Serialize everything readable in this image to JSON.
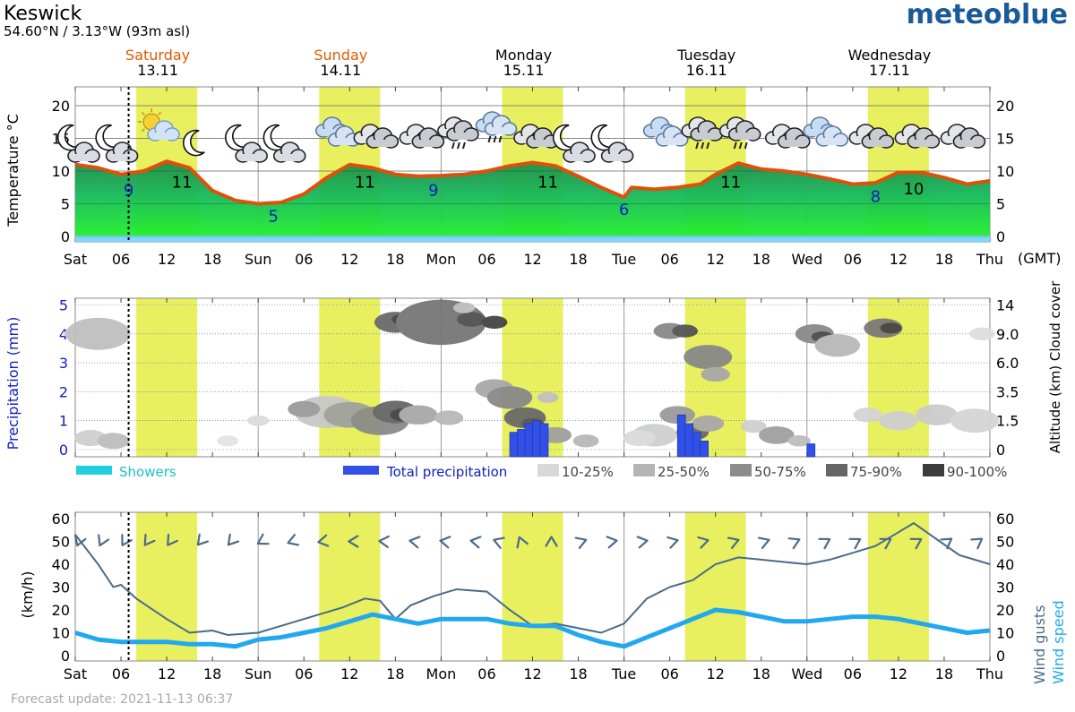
{
  "header": {
    "location": "Keswick",
    "coords": "54.60°N / 3.13°W (93m asl)",
    "brand": "meteoblue"
  },
  "days": [
    {
      "name": "Saturday",
      "date": "13.11",
      "weekend": true
    },
    {
      "name": "Sunday",
      "date": "14.11",
      "weekend": true
    },
    {
      "name": "Monday",
      "date": "15.11",
      "weekend": false
    },
    {
      "name": "Tuesday",
      "date": "16.11",
      "weekend": false
    },
    {
      "name": "Wednesday",
      "date": "17.11",
      "weekend": false
    }
  ],
  "x_ticks": [
    "Sat",
    "06",
    "12",
    "18",
    "Sun",
    "06",
    "12",
    "18",
    "Mon",
    "06",
    "12",
    "18",
    "Tue",
    "06",
    "12",
    "18",
    "Wed",
    "06",
    "12",
    "18",
    "Thu"
  ],
  "tz_label": "(GMT)",
  "colors": {
    "daylight": "#e8f060",
    "temp_line": "#e0500a",
    "temp_fill_top": "#1e8a4a",
    "temp_fill_bottom": "#20f02a",
    "water": "#80d8f8",
    "precip": "#3050e8",
    "showers": "#20d0e0",
    "gust": "#4a6b8a",
    "wind": "#20a8f0",
    "weekend_text": "#e05a00",
    "axis_blue": "#1020c0"
  },
  "chart_data": [
    {
      "type": "area",
      "ylabel": "Temperature °C",
      "ylim": [
        0,
        22
      ],
      "yticks": [
        0,
        5,
        10,
        15,
        20
      ],
      "x_hours": [
        0,
        6,
        12,
        18,
        24,
        30,
        36,
        42,
        48,
        54,
        60,
        66,
        72,
        78,
        84,
        90,
        96,
        102,
        108,
        114,
        120
      ],
      "temperature_hourly_points": [
        [
          0,
          11
        ],
        [
          3,
          10.5
        ],
        [
          6,
          9.5
        ],
        [
          9,
          10
        ],
        [
          12,
          11.5
        ],
        [
          15,
          10.5
        ],
        [
          18,
          7
        ],
        [
          21,
          5.5
        ],
        [
          24,
          5
        ],
        [
          27,
          5.2
        ],
        [
          30,
          6.5
        ],
        [
          33,
          9
        ],
        [
          36,
          11
        ],
        [
          39,
          10.5
        ],
        [
          42,
          9.5
        ],
        [
          45,
          9.2
        ],
        [
          48,
          9.3
        ],
        [
          51,
          9.5
        ],
        [
          54,
          10
        ],
        [
          57,
          10.8
        ],
        [
          60,
          11.3
        ],
        [
          63,
          10.8
        ],
        [
          66,
          9.2
        ],
        [
          69,
          7.5
        ],
        [
          72,
          6
        ],
        [
          73,
          7.5
        ],
        [
          76,
          7.2
        ],
        [
          79,
          7.5
        ],
        [
          82,
          8
        ],
        [
          84,
          9.5
        ],
        [
          87,
          11.2
        ],
        [
          90,
          10.3
        ],
        [
          93,
          10
        ],
        [
          96,
          9.5
        ],
        [
          99,
          8.8
        ],
        [
          102,
          8
        ],
        [
          105,
          8.2
        ],
        [
          108,
          9.8
        ],
        [
          111,
          9.8
        ],
        [
          114,
          9
        ],
        [
          117,
          8
        ],
        [
          120,
          8.5
        ]
      ],
      "labels": [
        {
          "hour": 7,
          "value": "9",
          "kind": "min"
        },
        {
          "hour": 14,
          "value": "11",
          "kind": "max"
        },
        {
          "hour": 26,
          "value": "5",
          "kind": "min"
        },
        {
          "hour": 38,
          "value": "11",
          "kind": "max"
        },
        {
          "hour": 47,
          "value": "9",
          "kind": "min"
        },
        {
          "hour": 62,
          "value": "11",
          "kind": "max"
        },
        {
          "hour": 72,
          "value": "6",
          "kind": "min"
        },
        {
          "hour": 86,
          "value": "11",
          "kind": "max"
        },
        {
          "hour": 105,
          "value": "8",
          "kind": "min"
        },
        {
          "hour": 110,
          "value": "10",
          "kind": "max"
        }
      ],
      "icons": [
        {
          "hour": 0,
          "type": "moon-cloud"
        },
        {
          "hour": 5,
          "type": "moon-cloud"
        },
        {
          "hour": 10,
          "type": "sun-cloud"
        },
        {
          "hour": 16,
          "type": "moon"
        },
        {
          "hour": 22,
          "type": "moon-cloud"
        },
        {
          "hour": 27,
          "type": "moon-cloud"
        },
        {
          "hour": 33,
          "type": "cloud"
        },
        {
          "hour": 38,
          "type": "cloud-dark"
        },
        {
          "hour": 44,
          "type": "cloud-dark"
        },
        {
          "hour": 49,
          "type": "cloud-rain"
        },
        {
          "hour": 54,
          "type": "cloud-rain-light"
        },
        {
          "hour": 59,
          "type": "cloud-dark"
        },
        {
          "hour": 65,
          "type": "moon-cloud"
        },
        {
          "hour": 70,
          "type": "moon-cloud"
        },
        {
          "hour": 76,
          "type": "cloud"
        },
        {
          "hour": 81,
          "type": "cloud-rain"
        },
        {
          "hour": 86,
          "type": "cloud-rain"
        },
        {
          "hour": 92,
          "type": "cloud-dark"
        },
        {
          "hour": 97,
          "type": "cloud"
        },
        {
          "hour": 103,
          "type": "cloud-dark"
        },
        {
          "hour": 109,
          "type": "cloud-dark"
        },
        {
          "hour": 115,
          "type": "cloud-dark"
        }
      ]
    },
    {
      "type": "bar",
      "ylabel": "Precipitation (mm)",
      "ylabel_right": "Altitude (km) Cloud cover",
      "ylim": [
        0,
        5
      ],
      "yticks": [
        0,
        1,
        2,
        3,
        4,
        5
      ],
      "right_ticks": [
        "0",
        "1.5",
        "3.5",
        "6.0",
        "9.0",
        "14"
      ],
      "precip_bars": [
        [
          57,
          0.6
        ],
        [
          58,
          0.7
        ],
        [
          59,
          0.9
        ],
        [
          60,
          1
        ],
        [
          61,
          0.9
        ],
        [
          79,
          1.2
        ],
        [
          80,
          0.9
        ],
        [
          81,
          0.6
        ],
        [
          82,
          0.3
        ],
        [
          96,
          0.2
        ]
      ],
      "legend": [
        "Showers",
        "Total precipitation",
        "10-25%",
        "25-50%",
        "50-75%",
        "75-90%",
        "90-100%"
      ]
    },
    {
      "type": "line",
      "ylabel": "(km/h)",
      "ylabel_right_gust": "Wind gusts",
      "ylabel_right_speed": "Wind speed",
      "ylim": [
        0,
        60
      ],
      "yticks": [
        0,
        10,
        20,
        30,
        40,
        50,
        60
      ],
      "wind_gusts": [
        [
          0,
          53
        ],
        [
          3,
          40
        ],
        [
          5,
          30
        ],
        [
          6,
          31
        ],
        [
          8,
          25
        ],
        [
          12,
          16
        ],
        [
          15,
          10
        ],
        [
          18,
          11
        ],
        [
          20,
          9
        ],
        [
          24,
          10
        ],
        [
          28,
          14
        ],
        [
          32,
          18
        ],
        [
          35,
          21
        ],
        [
          38,
          25
        ],
        [
          40,
          24
        ],
        [
          42,
          16
        ],
        [
          44,
          22
        ],
        [
          47,
          26
        ],
        [
          50,
          29
        ],
        [
          54,
          28
        ],
        [
          57,
          20
        ],
        [
          60,
          13
        ],
        [
          63,
          14
        ],
        [
          66,
          12
        ],
        [
          69,
          10
        ],
        [
          72,
          14
        ],
        [
          75,
          25
        ],
        [
          78,
          30
        ],
        [
          81,
          33
        ],
        [
          84,
          40
        ],
        [
          87,
          43
        ],
        [
          90,
          42
        ],
        [
          93,
          41
        ],
        [
          96,
          40
        ],
        [
          99,
          42
        ],
        [
          102,
          45
        ],
        [
          105,
          48
        ],
        [
          108,
          54
        ],
        [
          110,
          58
        ],
        [
          113,
          51
        ],
        [
          116,
          44
        ],
        [
          120,
          40
        ]
      ],
      "wind_speed": [
        [
          0,
          10
        ],
        [
          3,
          7
        ],
        [
          6,
          6
        ],
        [
          9,
          6
        ],
        [
          12,
          6
        ],
        [
          15,
          5
        ],
        [
          18,
          5
        ],
        [
          21,
          4
        ],
        [
          24,
          7
        ],
        [
          27,
          8
        ],
        [
          30,
          10
        ],
        [
          33,
          12
        ],
        [
          36,
          15
        ],
        [
          39,
          18
        ],
        [
          42,
          16
        ],
        [
          45,
          14
        ],
        [
          48,
          16
        ],
        [
          51,
          16
        ],
        [
          54,
          16
        ],
        [
          57,
          14
        ],
        [
          60,
          13
        ],
        [
          63,
          13
        ],
        [
          66,
          9
        ],
        [
          69,
          6
        ],
        [
          72,
          4
        ],
        [
          75,
          8
        ],
        [
          78,
          12
        ],
        [
          81,
          16
        ],
        [
          84,
          20
        ],
        [
          87,
          19
        ],
        [
          90,
          17
        ],
        [
          93,
          15
        ],
        [
          96,
          15
        ],
        [
          99,
          16
        ],
        [
          102,
          17
        ],
        [
          105,
          17
        ],
        [
          108,
          16
        ],
        [
          111,
          14
        ],
        [
          114,
          12
        ],
        [
          117,
          10
        ],
        [
          120,
          11
        ]
      ],
      "wind_dirs": [
        {
          "hour": 0,
          "deg": 20
        },
        {
          "hour": 3,
          "deg": 25
        },
        {
          "hour": 6,
          "deg": 30
        },
        {
          "hour": 9,
          "deg": 35
        },
        {
          "hour": 12,
          "deg": 35
        },
        {
          "hour": 16,
          "deg": 40
        },
        {
          "hour": 20,
          "deg": 40
        },
        {
          "hour": 24,
          "deg": 60
        },
        {
          "hour": 28,
          "deg": 70
        },
        {
          "hour": 32,
          "deg": 80
        },
        {
          "hour": 36,
          "deg": 90
        },
        {
          "hour": 40,
          "deg": 95
        },
        {
          "hour": 44,
          "deg": 100
        },
        {
          "hour": 48,
          "deg": 100
        },
        {
          "hour": 52,
          "deg": 100
        },
        {
          "hour": 55,
          "deg": 110
        },
        {
          "hour": 58,
          "deg": 160
        },
        {
          "hour": 62,
          "deg": 180
        },
        {
          "hour": 66,
          "deg": 250
        },
        {
          "hour": 70,
          "deg": 260
        },
        {
          "hour": 74,
          "deg": 260
        },
        {
          "hour": 78,
          "deg": 255
        },
        {
          "hour": 82,
          "deg": 255
        },
        {
          "hour": 86,
          "deg": 250
        },
        {
          "hour": 90,
          "deg": 250
        },
        {
          "hour": 94,
          "deg": 245
        },
        {
          "hour": 98,
          "deg": 240
        },
        {
          "hour": 102,
          "deg": 240
        },
        {
          "hour": 106,
          "deg": 240
        },
        {
          "hour": 110,
          "deg": 240
        },
        {
          "hour": 114,
          "deg": 235
        },
        {
          "hour": 118,
          "deg": 235
        }
      ]
    }
  ],
  "footer": {
    "update": "Forecast update: 2021-11-13 06:37"
  }
}
